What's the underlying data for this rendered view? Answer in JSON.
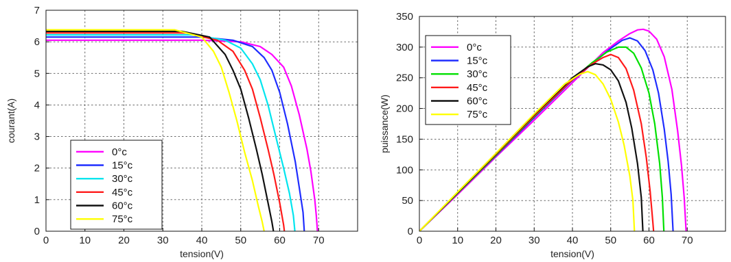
{
  "chart_data": [
    {
      "type": "line",
      "title": "",
      "xlabel": "tension(V)",
      "ylabel": "courant(A)",
      "xlim": [
        0,
        80
      ],
      "ylim": [
        0,
        7
      ],
      "xticks": [
        0,
        10,
        20,
        30,
        40,
        50,
        60,
        70
      ],
      "yticks": [
        0,
        1,
        2,
        3,
        4,
        5,
        6,
        7
      ],
      "grid": true,
      "legend_position": "bottom-left",
      "series": [
        {
          "name": "0°c",
          "color": "#ff00ff",
          "points": [
            [
              0,
              6.05
            ],
            [
              40,
              6.05
            ],
            [
              50,
              6.0
            ],
            [
              55,
              5.85
            ],
            [
              58,
              5.6
            ],
            [
              61,
              5.2
            ],
            [
              63,
              4.6
            ],
            [
              65,
              3.7
            ],
            [
              67,
              2.6
            ],
            [
              68,
              1.9
            ],
            [
              69,
              1.0
            ],
            [
              69.4,
              0.5
            ],
            [
              69.7,
              0
            ]
          ]
        },
        {
          "name": "15°c",
          "color": "#1f2dff",
          "points": [
            [
              0,
              6.15
            ],
            [
              40,
              6.15
            ],
            [
              48,
              6.05
            ],
            [
              53,
              5.85
            ],
            [
              56,
              5.5
            ],
            [
              58,
              5.1
            ],
            [
              60,
              4.4
            ],
            [
              62,
              3.4
            ],
            [
              64,
              2.2
            ],
            [
              65,
              1.4
            ],
            [
              66,
              0.6
            ],
            [
              66.3,
              0
            ]
          ]
        },
        {
          "name": "30°c",
          "color": "#00e5ee",
          "points": [
            [
              0,
              6.22
            ],
            [
              38,
              6.22
            ],
            [
              46,
              6.05
            ],
            [
              50,
              5.8
            ],
            [
              53,
              5.3
            ],
            [
              55,
              4.8
            ],
            [
              57,
              4.0
            ],
            [
              59,
              3.0
            ],
            [
              61,
              2.0
            ],
            [
              62.5,
              1.2
            ],
            [
              63.5,
              0.5
            ],
            [
              63.9,
              0
            ]
          ]
        },
        {
          "name": "45°c",
          "color": "#ff1a1a",
          "points": [
            [
              0,
              6.28
            ],
            [
              36,
              6.28
            ],
            [
              44,
              6.05
            ],
            [
              48,
              5.7
            ],
            [
              51,
              5.1
            ],
            [
              53,
              4.5
            ],
            [
              55,
              3.6
            ],
            [
              57,
              2.6
            ],
            [
              58.5,
              1.8
            ],
            [
              60,
              0.9
            ],
            [
              61,
              0.2
            ],
            [
              61.2,
              0
            ]
          ]
        },
        {
          "name": "60°c",
          "color": "#111111",
          "points": [
            [
              0,
              6.33
            ],
            [
              35,
              6.33
            ],
            [
              42,
              6.15
            ],
            [
              46,
              5.6
            ],
            [
              48,
              5.1
            ],
            [
              50,
              4.5
            ],
            [
              52,
              3.6
            ],
            [
              54,
              2.6
            ],
            [
              55.5,
              1.8
            ],
            [
              57,
              0.9
            ],
            [
              58,
              0.3
            ],
            [
              58.4,
              0
            ]
          ]
        },
        {
          "name": "75°c",
          "color": "#ffff00",
          "points": [
            [
              0,
              6.38
            ],
            [
              33,
              6.38
            ],
            [
              40,
              6.15
            ],
            [
              43,
              5.7
            ],
            [
              45,
              5.2
            ],
            [
              47,
              4.4
            ],
            [
              49,
              3.5
            ],
            [
              51,
              2.5
            ],
            [
              53,
              1.6
            ],
            [
              54.5,
              0.8
            ],
            [
              55.5,
              0.3
            ],
            [
              56,
              0
            ]
          ]
        }
      ]
    },
    {
      "type": "line",
      "title": "",
      "xlabel": "tension(V)",
      "ylabel": "puissance(W)",
      "xlim": [
        0,
        80
      ],
      "ylim": [
        0,
        350
      ],
      "xticks": [
        0,
        10,
        20,
        30,
        40,
        50,
        60,
        70
      ],
      "yticks": [
        0,
        50,
        100,
        150,
        200,
        250,
        300,
        350
      ],
      "grid": true,
      "legend_position": "top-left",
      "series": [
        {
          "name": "0°c",
          "color": "#ff00ff",
          "points": [
            [
              0,
              0
            ],
            [
              10,
              60
            ],
            [
              20,
              121
            ],
            [
              30,
              181
            ],
            [
              40,
              242
            ],
            [
              48,
              291
            ],
            [
              52,
              310
            ],
            [
              55,
              322
            ],
            [
              57,
              328
            ],
            [
              58.5,
              329
            ],
            [
              60,
              326
            ],
            [
              62,
              313
            ],
            [
              64,
              284
            ],
            [
              66,
              231
            ],
            [
              67.5,
              163
            ],
            [
              68.5,
              107
            ],
            [
              69.2,
              55
            ],
            [
              69.7,
              0
            ]
          ]
        },
        {
          "name": "15°c",
          "color": "#1f2dff",
          "points": [
            [
              0,
              0
            ],
            [
              10,
              62
            ],
            [
              20,
              123
            ],
            [
              30,
              185
            ],
            [
              40,
              246
            ],
            [
              45,
              272
            ],
            [
              50,
              298
            ],
            [
              53,
              311
            ],
            [
              55,
              315
            ],
            [
              57,
              310
            ],
            [
              59,
              294
            ],
            [
              61,
              263
            ],
            [
              62.5,
              225
            ],
            [
              64,
              166
            ],
            [
              65,
              114
            ],
            [
              65.8,
              60
            ],
            [
              66.3,
              0
            ]
          ]
        },
        {
          "name": "30°c",
          "color": "#00e000",
          "points": [
            [
              0,
              0
            ],
            [
              10,
              62
            ],
            [
              20,
              124
            ],
            [
              30,
              187
            ],
            [
              40,
              247
            ],
            [
              45,
              274
            ],
            [
              49,
              292
            ],
            [
              52,
              300
            ],
            [
              54,
              300
            ],
            [
              56,
              290
            ],
            [
              58,
              266
            ],
            [
              60,
              225
            ],
            [
              61.5,
              175
            ],
            [
              62.8,
              110
            ],
            [
              63.5,
              55
            ],
            [
              63.9,
              0
            ]
          ]
        },
        {
          "name": "45°c",
          "color": "#ff1a1a",
          "points": [
            [
              0,
              0
            ],
            [
              10,
              63
            ],
            [
              20,
              125
            ],
            [
              30,
              188
            ],
            [
              40,
              247
            ],
            [
              45,
              272
            ],
            [
              48,
              283
            ],
            [
              50,
              288
            ],
            [
              52,
              283
            ],
            [
              54,
              265
            ],
            [
              56,
              230
            ],
            [
              58,
              175
            ],
            [
              59.3,
              120
            ],
            [
              60.3,
              65
            ],
            [
              61,
              15
            ],
            [
              61.2,
              0
            ]
          ]
        },
        {
          "name": "60°c",
          "color": "#111111",
          "points": [
            [
              0,
              0
            ],
            [
              10,
              63
            ],
            [
              20,
              126
            ],
            [
              30,
              190
            ],
            [
              40,
              250
            ],
            [
              44,
              268
            ],
            [
              46,
              273
            ],
            [
              48,
              271
            ],
            [
              50,
              263
            ],
            [
              52,
              245
            ],
            [
              54,
              210
            ],
            [
              55.5,
              168
            ],
            [
              57,
              110
            ],
            [
              58,
              55
            ],
            [
              58.4,
              0
            ]
          ]
        },
        {
          "name": "75°c",
          "color": "#ffff00",
          "points": [
            [
              0,
              0
            ],
            [
              10,
              64
            ],
            [
              20,
              127
            ],
            [
              30,
              191
            ],
            [
              38,
              240
            ],
            [
              42,
              256
            ],
            [
              44,
              260
            ],
            [
              46,
              255
            ],
            [
              48,
              240
            ],
            [
              50,
              215
            ],
            [
              52,
              178
            ],
            [
              53.5,
              140
            ],
            [
              55,
              90
            ],
            [
              55.8,
              50
            ],
            [
              56.2,
              0
            ]
          ]
        }
      ]
    }
  ]
}
